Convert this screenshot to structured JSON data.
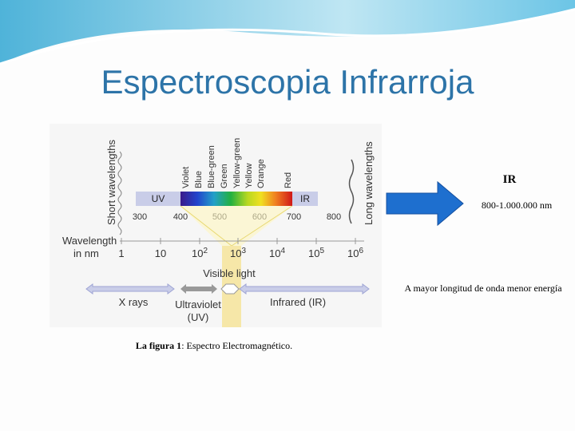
{
  "title": "Espectroscopia Infrarroja",
  "figure": {
    "short_wavelengths": "Short wavelengths",
    "long_wavelengths": "Long wavelengths",
    "colors": [
      "Violet",
      "Blue",
      "Blue-green",
      "Green",
      "Yellow-green",
      "Yellow",
      "Orange",
      "Red"
    ],
    "uv": "UV",
    "ir": "IR",
    "nm_scale": [
      "300",
      "400",
      "500",
      "600",
      "700",
      "800"
    ],
    "axis_label": [
      "Wavelength",
      "in nm"
    ],
    "log_scale": [
      {
        "base": "1",
        "exp": ""
      },
      {
        "base": "10",
        "exp": ""
      },
      {
        "base": "10",
        "exp": "2"
      },
      {
        "base": "10",
        "exp": "3"
      },
      {
        "base": "10",
        "exp": "4"
      },
      {
        "base": "10",
        "exp": "5"
      },
      {
        "base": "10",
        "exp": "6"
      }
    ],
    "visible_light": "Visible light",
    "x_rays": "X rays",
    "ultraviolet": [
      "Ultraviolet",
      "(UV)"
    ],
    "infrared": "Infrared (IR)"
  },
  "caption": {
    "bold": "La figura 1",
    "rest": ": Espectro Electromagnético."
  },
  "side": {
    "heading": "IR",
    "range": "800-1.000.000 nm",
    "note": "A mayor longitud de onda menor energía"
  }
}
